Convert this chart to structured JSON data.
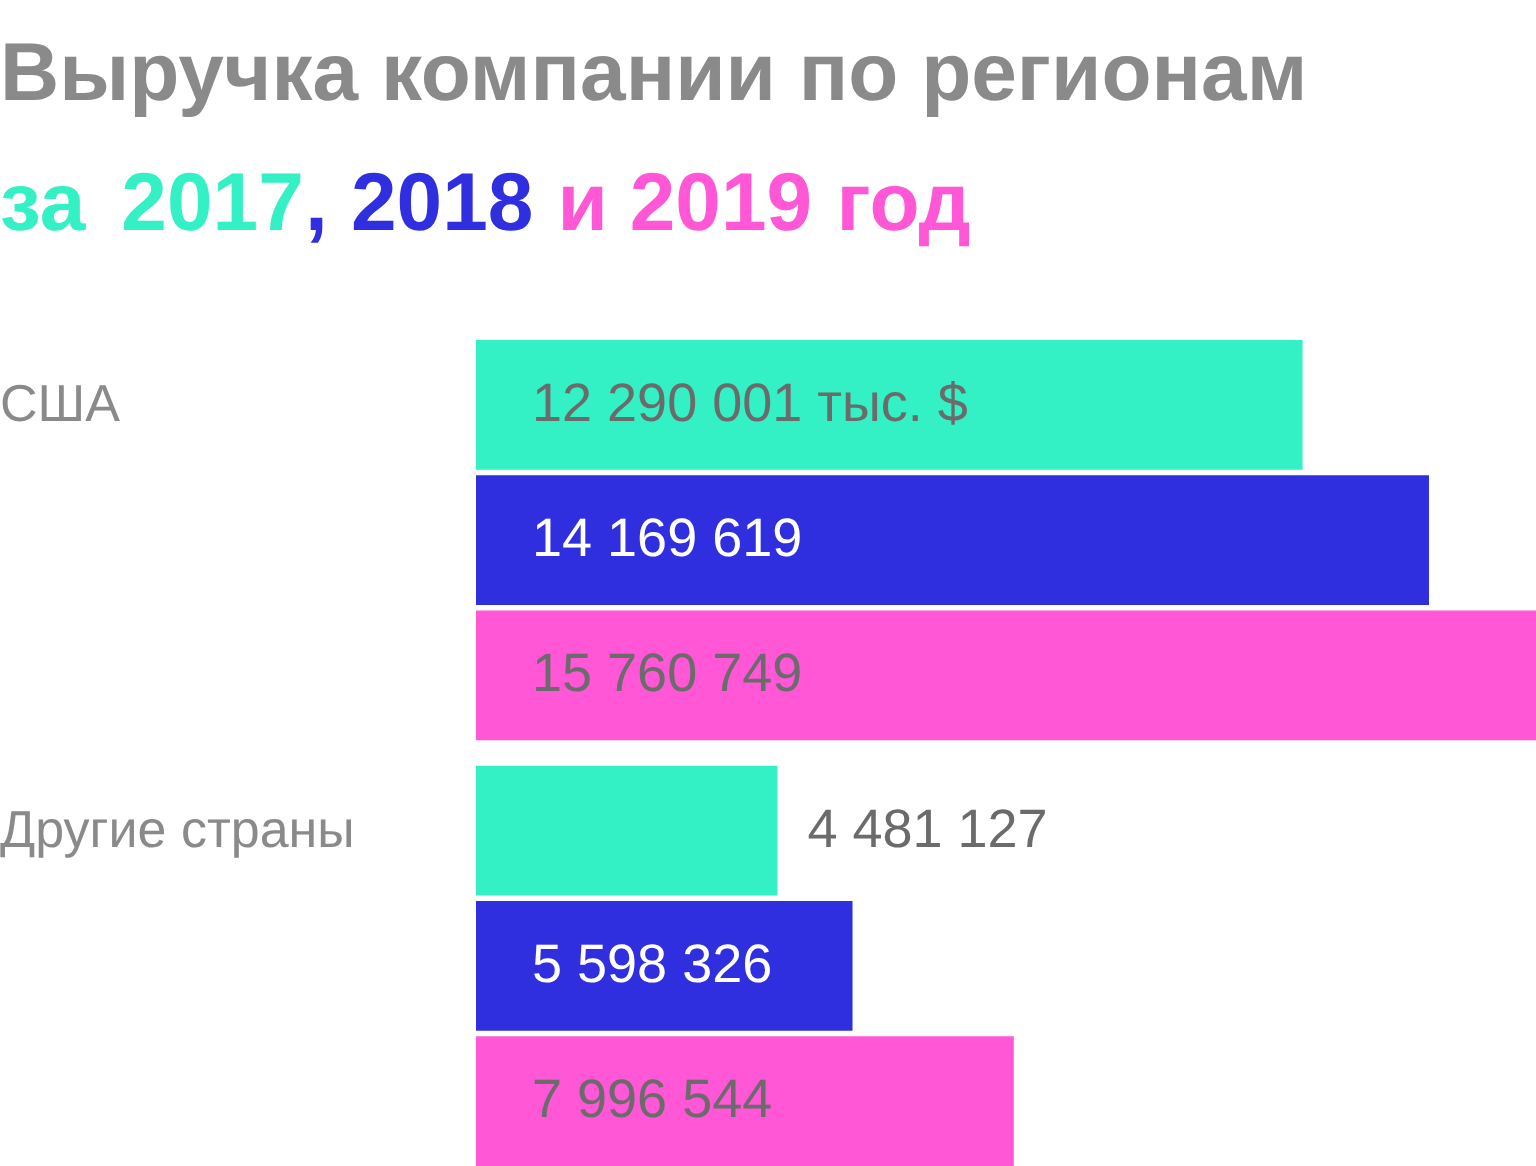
{
  "chart_data": {
    "type": "bar",
    "orientation": "horizontal",
    "title": "Выручка компании по регионам",
    "subtitle": "за 2017, 2018 и 2019 год",
    "categories": [
      "США",
      "Другие страны"
    ],
    "series": [
      {
        "color": "#33f0c5",
        "values": [
          12290001,
          4481127
        ],
        "value_labels": [
          "12 290 001 тыс. $",
          "4 481 127"
        ]
      },
      {
        "color": "#2f2fe0",
        "values": [
          14169619,
          5598326
        ],
        "value_labels": [
          "14 169 619",
          "5 598 326"
        ]
      },
      {
        "color": "#ff57d6",
        "values": [
          15760749,
          7996544
        ],
        "value_labels": [
          "15 760 749",
          "7 996 544"
        ]
      }
    ],
    "data_labels": true
  }
}
